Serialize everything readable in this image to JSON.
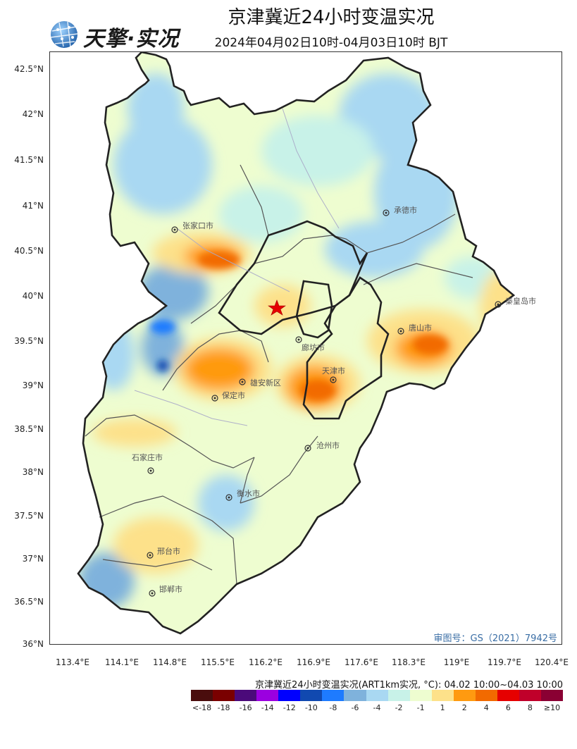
{
  "header": {
    "brand": "天擎·实况",
    "title": "京津冀近24小时变温实况",
    "subtitle": "2024年04月02日10时-04月03日10时 BJT"
  },
  "axes": {
    "lat_labels": [
      "42.5°N",
      "42°N",
      "41.5°N",
      "41°N",
      "40.5°N",
      "40°N",
      "39.5°N",
      "39°N",
      "38.5°N",
      "38°N",
      "37.5°N",
      "37°N",
      "36.5°N",
      "36°N"
    ],
    "lon_labels": [
      "113.4°E",
      "114.1°E",
      "114.8°E",
      "115.5°E",
      "116.2°E",
      "116.9°E",
      "117.6°E",
      "118.3°E",
      "119°E",
      "119.7°E",
      "120.4°E"
    ]
  },
  "cities": [
    {
      "name": "张家口市"
    },
    {
      "name": "承德市"
    },
    {
      "name": "秦皇岛市"
    },
    {
      "name": "唐山市"
    },
    {
      "name": "廊坊市"
    },
    {
      "name": "天津市"
    },
    {
      "name": "雄安新区"
    },
    {
      "name": "保定市"
    },
    {
      "name": "沧州市"
    },
    {
      "name": "石家庄市"
    },
    {
      "name": "衡水市"
    },
    {
      "name": "邢台市"
    },
    {
      "name": "邯郸市"
    }
  ],
  "review_number": "审图号：GS（2021）7942号",
  "legend": {
    "title": "京津冀近24小时变温实况(ART1km实况, °C): 04.02 10:00~04.03 10:00",
    "colors": [
      "#4a0d0d",
      "#7a0000",
      "#4b0a7a",
      "#9b00e0",
      "#0000ff",
      "#1149b0",
      "#1e7bff",
      "#7fb2dc",
      "#a9d8f2",
      "#c8f2e8",
      "#eefdd0",
      "#fde18a",
      "#ff9a10",
      "#f26a00",
      "#e60000",
      "#c0002a",
      "#8a0033"
    ],
    "labels": [
      "<-18",
      "-18",
      "-16",
      "-14",
      "-12",
      "-10",
      "-8",
      "-6",
      "-4",
      "-2",
      "-1",
      "1",
      "2",
      "4",
      "6",
      "8",
      "≥10"
    ]
  }
}
